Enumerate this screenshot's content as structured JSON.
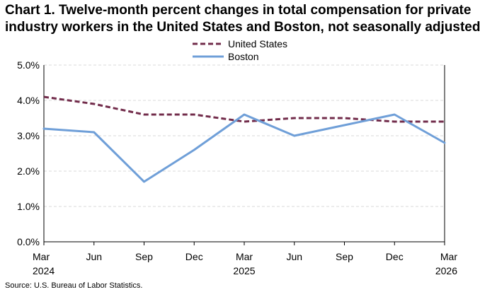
{
  "title_line1": "Chart 1. Twelve-month percent changes in total compensation for private",
  "title_line2": "industry workers in the United States and Boston, not seasonally adjusted",
  "source": "Source: U.S. Bureau of Labor Statistics.",
  "chart_data": {
    "type": "line",
    "title": "Chart 1. Twelve-month percent changes in total compensation for private industry workers in the United States and Boston, not seasonally adjusted",
    "categories": [
      "Mar 2024",
      "Jun",
      "Sep",
      "Dec",
      "Mar 2025",
      "Jun",
      "Sep",
      "Dec",
      "Mar 2026"
    ],
    "x_tick_labels": [
      [
        "Mar",
        "2024"
      ],
      [
        "Jun"
      ],
      [
        "Sep"
      ],
      [
        "Dec"
      ],
      [
        "Mar",
        "2025"
      ],
      [
        "Jun"
      ],
      [
        "Sep"
      ],
      [
        "Dec"
      ],
      [
        "Mar",
        "2026"
      ]
    ],
    "y_tick_labels": [
      "0.0%",
      "1.0%",
      "2.0%",
      "3.0%",
      "4.0%",
      "5.0%"
    ],
    "ylim": [
      0,
      5
    ],
    "y_ticks": [
      0,
      1,
      2,
      3,
      4,
      5
    ],
    "grid": "horizontal",
    "legend": "top-center",
    "series": [
      {
        "name": "United States",
        "values": [
          4.1,
          3.9,
          3.6,
          3.6,
          3.4,
          3.5,
          3.5,
          3.4,
          3.4
        ],
        "color": "#722c4b",
        "style": "dashed"
      },
      {
        "name": "Boston",
        "values": [
          3.2,
          3.1,
          1.7,
          2.6,
          3.6,
          3.0,
          3.3,
          3.6,
          2.8
        ],
        "color": "#6f9fd8",
        "style": "solid"
      }
    ]
  }
}
